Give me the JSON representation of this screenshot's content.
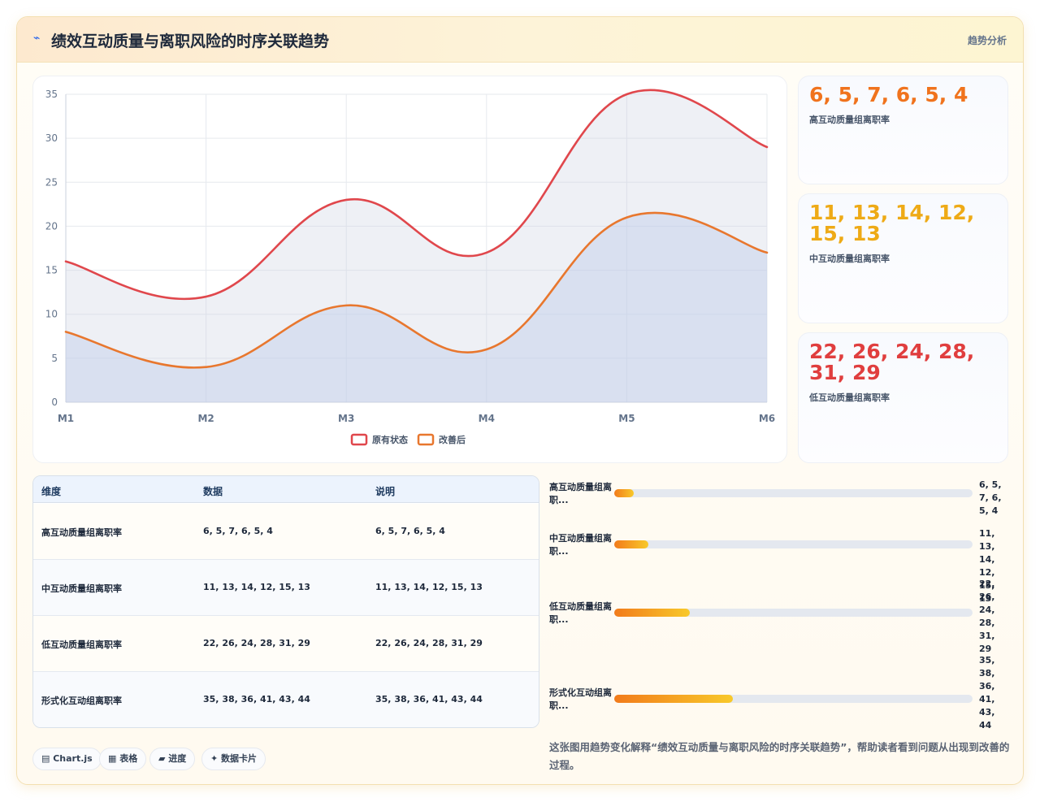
{
  "header": {
    "icon": "lightning-icon",
    "title": "绩效互动质量与离职风险的时序关联趋势",
    "tag": "趋势分析"
  },
  "chart_data": {
    "type": "area",
    "x": [
      "M1",
      "M2",
      "M3",
      "M4",
      "M5",
      "M6"
    ],
    "ylim": [
      0,
      35
    ],
    "yticks": [
      0,
      5,
      10,
      15,
      20,
      25,
      30,
      35
    ],
    "grid": true,
    "legend_position": "bottom",
    "series": [
      {
        "name": "原有状态",
        "color": "#e0474c",
        "values": [
          16,
          12,
          23,
          17,
          35,
          29
        ]
      },
      {
        "name": "改善后",
        "color": "#e8772e",
        "values": [
          8,
          4,
          11,
          6,
          21,
          17
        ]
      }
    ]
  },
  "stat_cards": [
    {
      "value": "6, 5, 7, 6, 5, 4",
      "label": "高互动质量组离职率",
      "color": "#f0731d"
    },
    {
      "value": "11, 13, 14, 12, 15, 13",
      "label": "中互动质量组离职率",
      "color": "#eeaa16"
    },
    {
      "value": "22, 26, 24, 28, 31, 29",
      "label": "低互动质量组离职率",
      "color": "#e03e3e"
    }
  ],
  "table": {
    "headers": [
      "维度",
      "数据",
      "说明"
    ],
    "rows": [
      [
        "高互动质量组离职率",
        "6, 5, 7, 6, 5, 4",
        "6, 5, 7, 6, 5, 4"
      ],
      [
        "中互动质量组离职率",
        "11, 13, 14, 12, 15, 13",
        "11, 13, 14, 12, 15, 13"
      ],
      [
        "低互动质量组离职率",
        "22, 26, 24, 28, 31, 29",
        "22, 26, 24, 28, 31, 29"
      ],
      [
        "形式化互动组离职率",
        "35, 38, 36, 41, 43, 44",
        "35, 38, 36, 41, 43, 44"
      ]
    ]
  },
  "progress": [
    {
      "label": "高互动质量组离职...",
      "value_lines": [
        "6, 5,",
        "7, 6,",
        "5, 4"
      ],
      "fill_fraction": 0.055
    },
    {
      "label": "中互动质量组离职...",
      "value_lines": [
        "11, 13,",
        "14,",
        "12,",
        "15, 13"
      ],
      "fill_fraction": 0.095
    },
    {
      "label": "低互动质量组离职...",
      "value_lines": [
        "22,",
        "26,",
        "24,",
        "28,",
        "31, 29"
      ],
      "fill_fraction": 0.21
    },
    {
      "label": "形式化互动组离职...",
      "value_lines": [
        "35,",
        "38,",
        "36,",
        "41,",
        "43,",
        "44"
      ],
      "fill_fraction": 0.33
    }
  ],
  "pills": [
    {
      "icon": "chart-icon",
      "label": "▤ Chart.js"
    },
    {
      "icon": "table-icon",
      "label": "▦ 表格"
    },
    {
      "icon": "progress-icon",
      "label": "▰ 进度"
    },
    {
      "icon": "sparkle-icon",
      "label": "✦ 数据卡片"
    }
  ],
  "caption": "这张图用趋势变化解释“绩效互动质量与离职风险的时序关联趋势”，帮助读者看到问题从出现到改善的过程。"
}
